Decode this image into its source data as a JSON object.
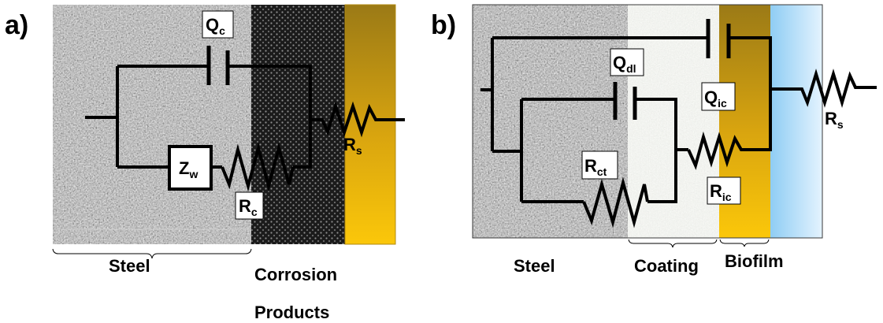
{
  "panel_a": {
    "label": "a)",
    "regions": {
      "steel": "Steel",
      "corrosion_line1": "Corrosion",
      "corrosion_line2": "Products"
    },
    "components": {
      "qc": {
        "main": "Q",
        "sub": "c"
      },
      "zw": {
        "main": "Z",
        "sub": "w"
      },
      "rc": {
        "main": "R",
        "sub": "c"
      },
      "rs": {
        "main": "R",
        "sub": "s"
      }
    }
  },
  "panel_b": {
    "label": "b)",
    "regions": {
      "steel": "Steel",
      "coating": "Coating",
      "biofilm": "Biofilm"
    },
    "components": {
      "qdl": {
        "main": "Q",
        "sub": "dl"
      },
      "qic": {
        "main": "Q",
        "sub": "ic"
      },
      "rct": {
        "main": "R",
        "sub": "ct"
      },
      "ric": {
        "main": "R",
        "sub": "ic"
      },
      "rs": {
        "main": "R",
        "sub": "s"
      }
    }
  },
  "colors": {
    "steel": "#9a9a9a",
    "corrosion": "#2a2a2a",
    "solution_gold_top": "#a27d10",
    "solution_gold_bottom": "#f8c40c",
    "coating": "#e7e9e4",
    "electrolyte_blue_top": "#a9d7f5",
    "electrolyte_blue_bottom": "#dff0fd"
  }
}
